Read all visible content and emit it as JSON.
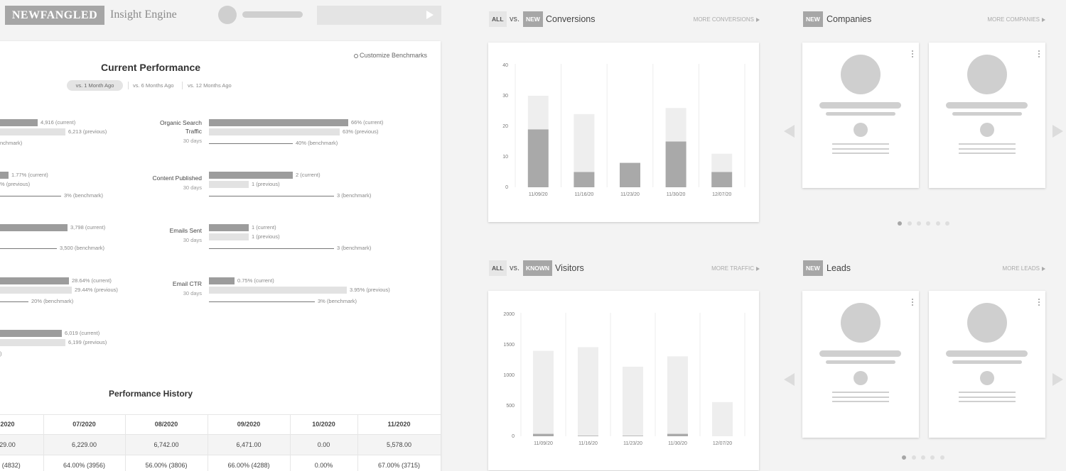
{
  "header": {
    "logo": "NEWFANGLED",
    "app_name": "Insight Engine"
  },
  "performance": {
    "title": "Current Performance",
    "customize": "Customize Benchmarks",
    "tabs": [
      "vs. 1 Month Ago",
      "vs. 6 Months Ago",
      "vs. 12 Months Ago"
    ],
    "metrics_left": [
      {
        "current": "4,916 (current)",
        "previous": "6,213 (previous)",
        "benchmark": "nchmark)"
      },
      {
        "current": "1.77% (current)",
        "previous": "% (previous)",
        "benchmark": "3% (benchmark)"
      },
      {
        "current": "3,798 (current)",
        "benchmark": "3,500 (benchmark)"
      },
      {
        "current": "28.64% (current)",
        "previous": "29.44% (previous)",
        "benchmark": "20% (benchmark)"
      },
      {
        "current": "6,019 (current)",
        "previous": "6,199 (previous)",
        "benchmark": ")"
      }
    ],
    "metrics_right": [
      {
        "label": "Organic Search Traffic",
        "period": "30 days",
        "current": "66% (current)",
        "previous": "63% (previous)",
        "benchmark": "40% (benchmark)"
      },
      {
        "label": "Content Published",
        "period": "30 days",
        "current": "2 (current)",
        "previous": "1 (previous)",
        "benchmark": "3 (benchmark)"
      },
      {
        "label": "Emails Sent",
        "period": "30 days",
        "current": "1 (current)",
        "previous": "1 (previous)",
        "benchmark": "3 (benchmark)"
      },
      {
        "label": "Email CTR",
        "period": "30 days",
        "current": "0.75% (current)",
        "previous": "3.95% (previous)",
        "benchmark": "3% (benchmark)"
      }
    ]
  },
  "history": {
    "title": "Performance History",
    "columns": [
      "2020",
      "07/2020",
      "08/2020",
      "09/2020",
      "10/2020",
      "11/2020"
    ],
    "rows": [
      [
        "29.00",
        "6,229.00",
        "6,742.00",
        "6,471.00",
        "0.00",
        "5,578.00"
      ],
      [
        "% (4832)",
        "64.00% (3956)",
        "56.00% (3806)",
        "66.00% (4288)",
        "0.00%",
        "67.00% (3715)"
      ]
    ]
  },
  "conversions": {
    "all": "ALL",
    "vs": "vs.",
    "tag": "NEW",
    "title": "Conversions",
    "more": "MORE CONVERSIONS",
    "chart_data": {
      "type": "bar",
      "categories": [
        "11/09/20",
        "11/16/20",
        "11/23/20",
        "11/30/20",
        "12/07/20"
      ],
      "series": [
        {
          "color": "#a9a9a9",
          "values": [
            19,
            5,
            8,
            15,
            5
          ]
        },
        {
          "color": "#eeeeee",
          "values": [
            11,
            19,
            0,
            11,
            6
          ]
        }
      ],
      "stacked": true,
      "ylim": [
        0,
        40
      ],
      "yticks": [
        0,
        10,
        20,
        30,
        40
      ]
    }
  },
  "visitors": {
    "all": "ALL",
    "vs": "vs.",
    "tag": "KNOWN",
    "title": "Visitors",
    "more": "MORE TRAFFIC",
    "chart_data": {
      "type": "bar",
      "categories": [
        "11/09/20",
        "11/16/20",
        "11/23/20",
        "11/30/20",
        "12/07/20"
      ],
      "series": [
        {
          "color": "#a9a9a9",
          "values": [
            40,
            10,
            10,
            40,
            0
          ]
        },
        {
          "color": "#eeeeee",
          "values": [
            1360,
            1450,
            1130,
            1270,
            560
          ]
        }
      ],
      "stacked": true,
      "ylim": [
        0,
        2000
      ],
      "yticks": [
        0,
        500,
        1000,
        1500,
        2000
      ]
    }
  },
  "companies": {
    "tag": "NEW",
    "title": "Companies",
    "more": "MORE COMPANIES"
  },
  "leads": {
    "tag": "NEW",
    "title": "Leads",
    "more": "MORE LEADS"
  }
}
